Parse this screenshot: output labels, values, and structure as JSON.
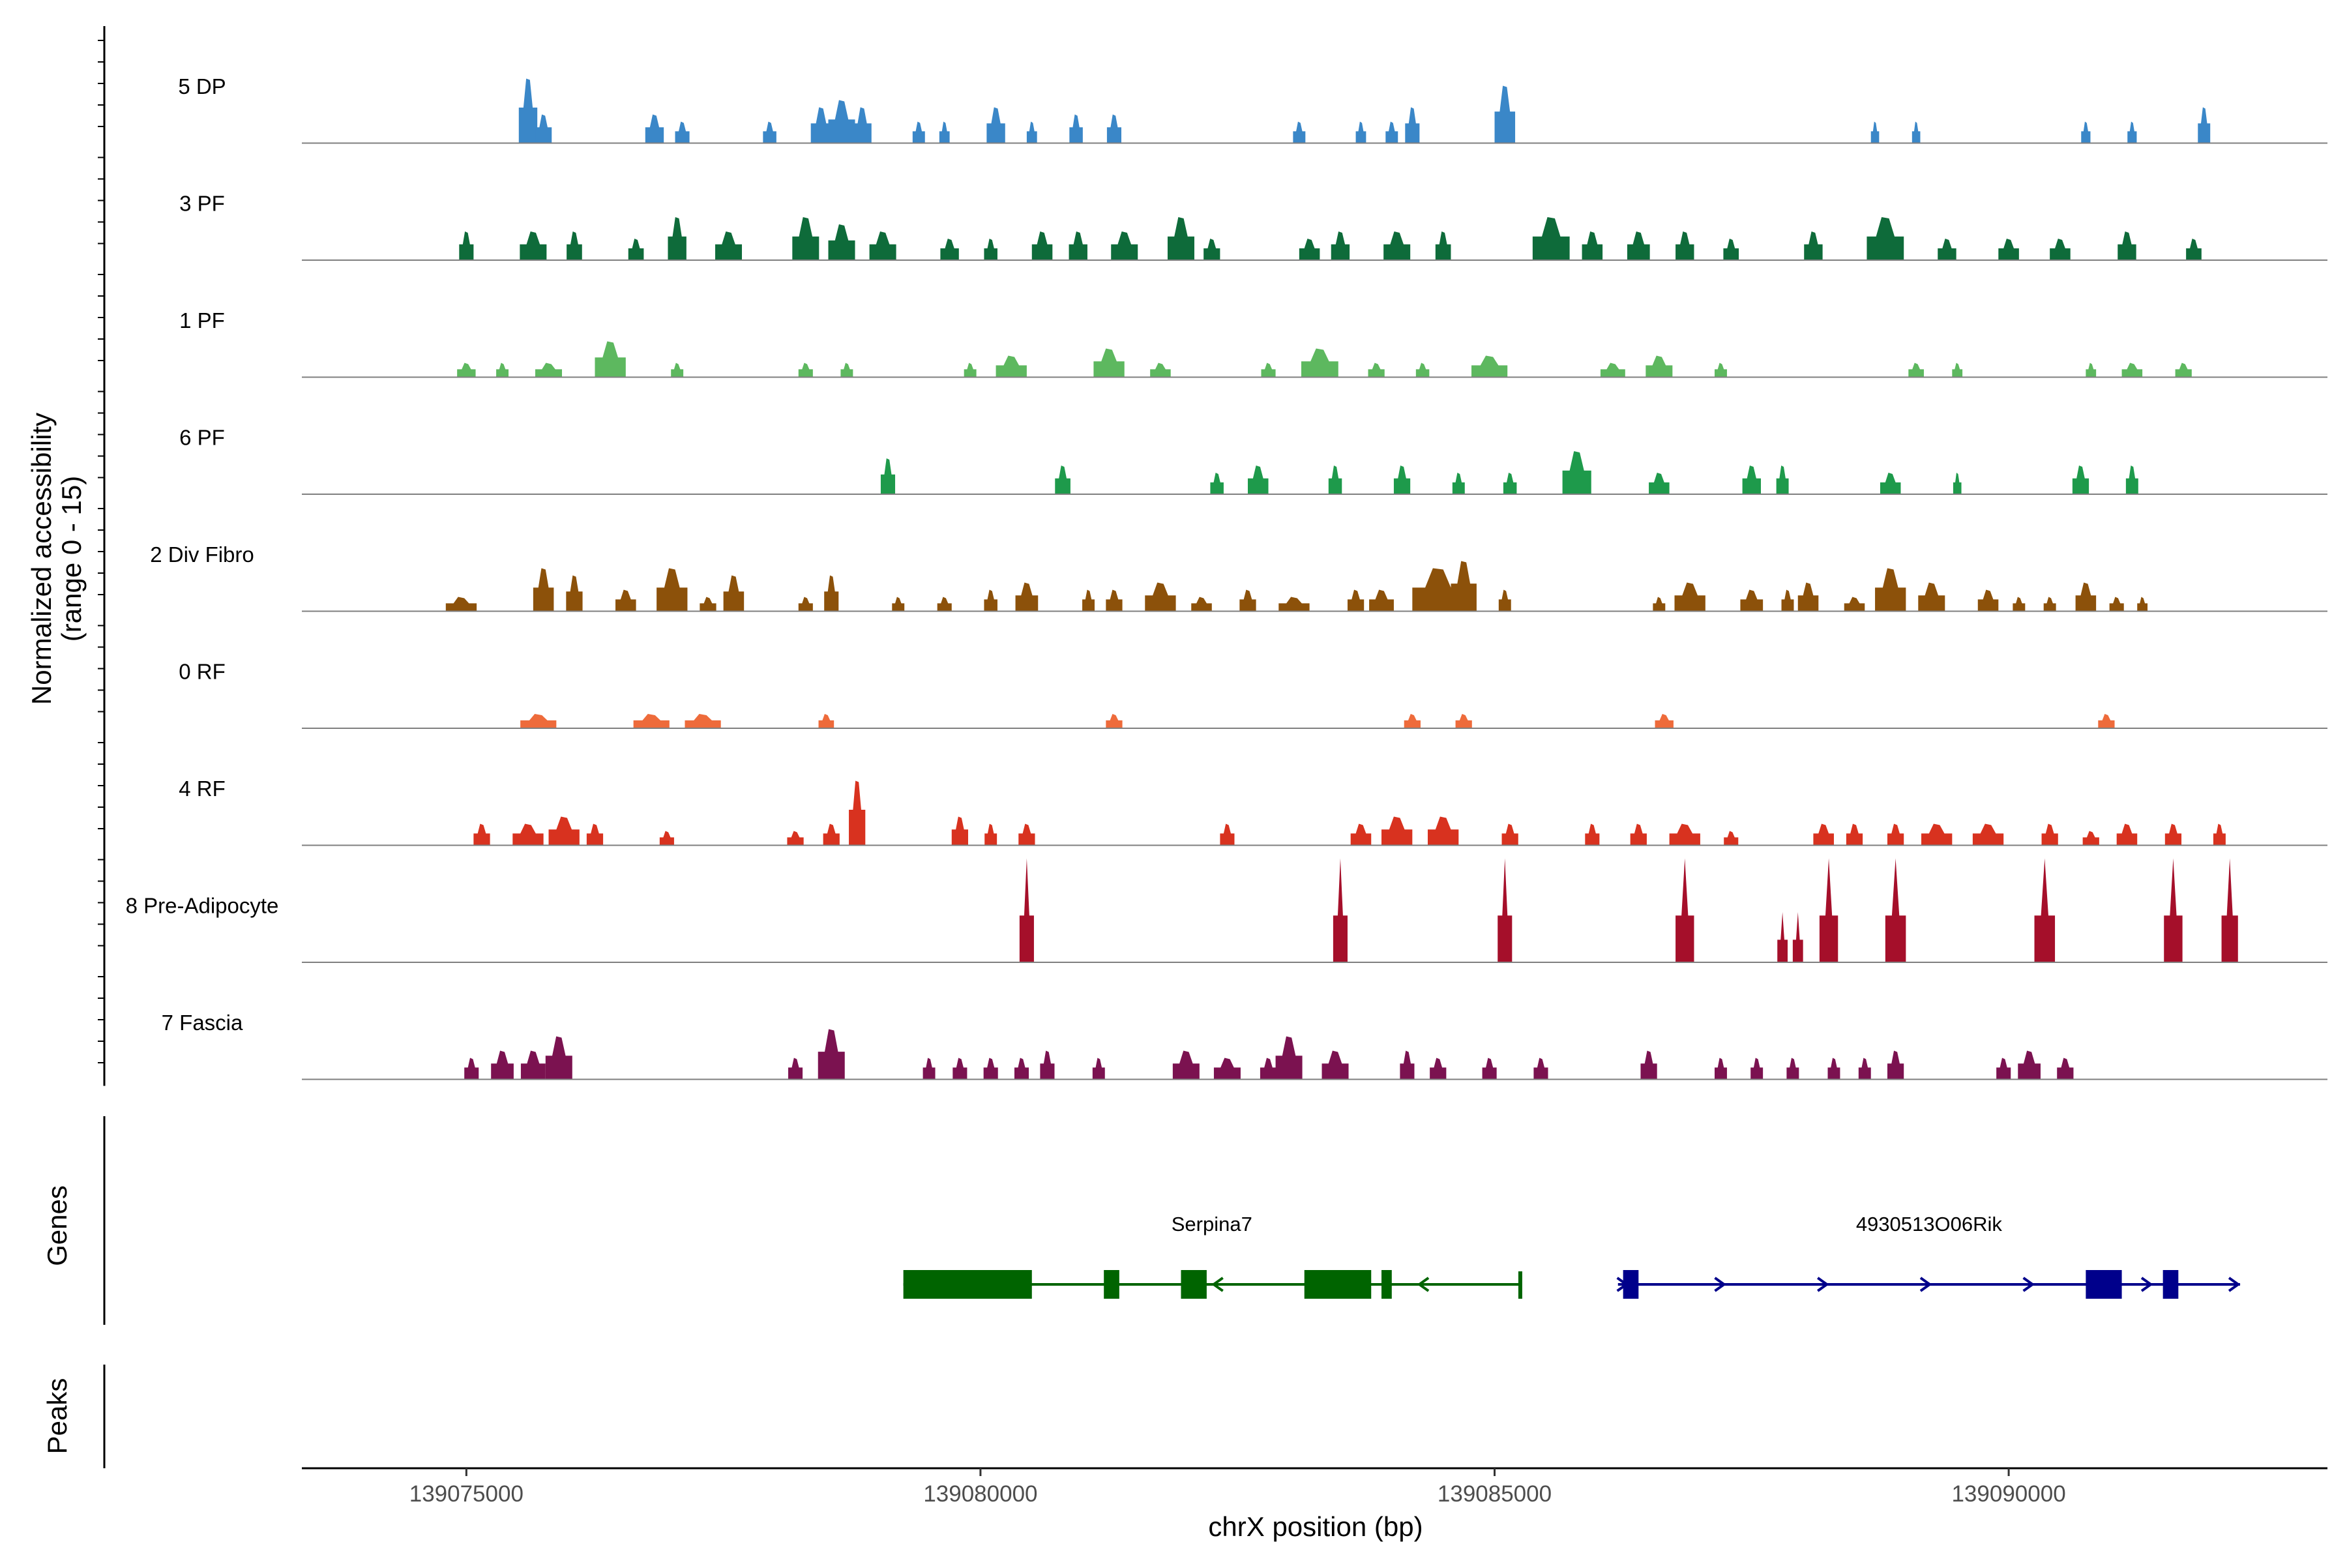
{
  "chart_data": {
    "type": "area",
    "title": "",
    "region": {
      "chromosome": "chrX",
      "start": 139073400,
      "end": 139093100
    },
    "xlabel": "chrX position (bp)",
    "xticks": [
      139075000,
      139080000,
      139085000,
      139090000
    ],
    "xtick_labels": [
      "139075000",
      "139080000",
      "139085000",
      "139090000"
    ],
    "ylabel_line1": "Normalized accessibility",
    "ylabel_line2": "(range 0 - 15)",
    "ylim": [
      0,
      15
    ],
    "genes_label": "Genes",
    "peaks_label": "Peaks",
    "peaks": [],
    "series": [
      {
        "name": "5 DP",
        "color": "#3A87C8",
        "peaks": [
          [
            139075600,
            180,
            9
          ],
          [
            139075750,
            160,
            4
          ],
          [
            139076830,
            180,
            4
          ],
          [
            139077100,
            140,
            3
          ],
          [
            139077950,
            130,
            3
          ],
          [
            139078450,
            200,
            5
          ],
          [
            139078650,
            260,
            6
          ],
          [
            139078850,
            180,
            5
          ],
          [
            139079400,
            120,
            3
          ],
          [
            139079650,
            100,
            3
          ],
          [
            139080150,
            180,
            5
          ],
          [
            139080500,
            100,
            3
          ],
          [
            139080930,
            130,
            4
          ],
          [
            139081300,
            140,
            4
          ],
          [
            139083100,
            120,
            3
          ],
          [
            139083700,
            100,
            3
          ],
          [
            139084000,
            120,
            3
          ],
          [
            139084200,
            140,
            5
          ],
          [
            139085100,
            200,
            8
          ],
          [
            139088700,
            80,
            3
          ],
          [
            139089100,
            80,
            3
          ],
          [
            139090750,
            90,
            3
          ],
          [
            139091200,
            90,
            3
          ],
          [
            139091900,
            120,
            5
          ]
        ]
      },
      {
        "name": "3 PF",
        "color": "#0E6B3A",
        "peaks": [
          [
            139075000,
            140,
            4
          ],
          [
            139075650,
            260,
            4
          ],
          [
            139076050,
            150,
            4
          ],
          [
            139076650,
            150,
            3
          ],
          [
            139077050,
            180,
            6
          ],
          [
            139077550,
            260,
            4
          ],
          [
            139078300,
            260,
            6
          ],
          [
            139078650,
            260,
            5
          ],
          [
            139079050,
            260,
            4
          ],
          [
            139079700,
            180,
            3
          ],
          [
            139080100,
            130,
            3
          ],
          [
            139080600,
            200,
            4
          ],
          [
            139080950,
            180,
            4
          ],
          [
            139081400,
            260,
            4
          ],
          [
            139081950,
            260,
            6
          ],
          [
            139082250,
            160,
            3
          ],
          [
            139083200,
            200,
            3
          ],
          [
            139083500,
            180,
            4
          ],
          [
            139084050,
            260,
            4
          ],
          [
            139084500,
            150,
            4
          ],
          [
            139085550,
            360,
            6
          ],
          [
            139085950,
            200,
            4
          ],
          [
            139086400,
            220,
            4
          ],
          [
            139086850,
            180,
            4
          ],
          [
            139087300,
            150,
            3
          ],
          [
            139088100,
            180,
            4
          ],
          [
            139088800,
            360,
            6
          ],
          [
            139089400,
            180,
            3
          ],
          [
            139090000,
            200,
            3
          ],
          [
            139090500,
            200,
            3
          ],
          [
            139091150,
            180,
            4
          ],
          [
            139091800,
            150,
            3
          ]
        ]
      },
      {
        "name": "1 PF",
        "color": "#5DB85F",
        "peaks": [
          [
            139075000,
            180,
            2
          ],
          [
            139075350,
            120,
            2
          ],
          [
            139075800,
            260,
            2
          ],
          [
            139076400,
            300,
            5
          ],
          [
            139077050,
            120,
            2
          ],
          [
            139078300,
            140,
            2
          ],
          [
            139078700,
            120,
            2
          ],
          [
            139079900,
            120,
            2
          ],
          [
            139080300,
            300,
            3
          ],
          [
            139081250,
            300,
            4
          ],
          [
            139081750,
            200,
            2
          ],
          [
            139082800,
            140,
            2
          ],
          [
            139083300,
            360,
            4
          ],
          [
            139083850,
            160,
            2
          ],
          [
            139084300,
            130,
            2
          ],
          [
            139084950,
            350,
            3
          ],
          [
            139086150,
            240,
            2
          ],
          [
            139086600,
            260,
            3
          ],
          [
            139087200,
            120,
            2
          ],
          [
            139089100,
            150,
            2
          ],
          [
            139089500,
            100,
            2
          ],
          [
            139090800,
            100,
            2
          ],
          [
            139091200,
            200,
            2
          ],
          [
            139091700,
            160,
            2
          ]
        ]
      },
      {
        "name": "6 PF",
        "color": "#1E9A4B",
        "peaks": [
          [
            139079100,
            140,
            5
          ],
          [
            139080800,
            150,
            4
          ],
          [
            139082300,
            130,
            3
          ],
          [
            139082700,
            200,
            4
          ],
          [
            139083450,
            130,
            4
          ],
          [
            139084100,
            160,
            4
          ],
          [
            139084650,
            120,
            3
          ],
          [
            139085150,
            130,
            3
          ],
          [
            139085800,
            280,
            6
          ],
          [
            139086600,
            200,
            3
          ],
          [
            139087500,
            180,
            4
          ],
          [
            139087800,
            120,
            4
          ],
          [
            139088850,
            200,
            3
          ],
          [
            139089500,
            80,
            3
          ],
          [
            139090700,
            160,
            4
          ],
          [
            139091200,
            120,
            4
          ]
        ]
      },
      {
        "name": "2 Div Fibro",
        "color": "#8C510A",
        "peaks": [
          [
            139074950,
            300,
            2
          ],
          [
            139075750,
            200,
            6
          ],
          [
            139076050,
            160,
            5
          ],
          [
            139076550,
            200,
            3
          ],
          [
            139077000,
            300,
            6
          ],
          [
            139077350,
            160,
            2
          ],
          [
            139077600,
            200,
            5
          ],
          [
            139078300,
            140,
            2
          ],
          [
            139078550,
            140,
            5
          ],
          [
            139079200,
            120,
            2
          ],
          [
            139079650,
            140,
            2
          ],
          [
            139080100,
            130,
            3
          ],
          [
            139080450,
            220,
            4
          ],
          [
            139081050,
            120,
            3
          ],
          [
            139081300,
            160,
            3
          ],
          [
            139081750,
            300,
            4
          ],
          [
            139082150,
            200,
            2
          ],
          [
            139082600,
            160,
            3
          ],
          [
            139083050,
            300,
            2
          ],
          [
            139083650,
            160,
            3
          ],
          [
            139083900,
            240,
            3
          ],
          [
            139084450,
            500,
            6
          ],
          [
            139084700,
            250,
            7
          ],
          [
            139085100,
            120,
            3
          ],
          [
            139086600,
            120,
            2
          ],
          [
            139086900,
            300,
            4
          ],
          [
            139087500,
            220,
            3
          ],
          [
            139087850,
            120,
            3
          ],
          [
            139088050,
            200,
            4
          ],
          [
            139088500,
            200,
            2
          ],
          [
            139088850,
            300,
            6
          ],
          [
            139089250,
            260,
            4
          ],
          [
            139089800,
            200,
            3
          ],
          [
            139090100,
            120,
            2
          ],
          [
            139090400,
            120,
            2
          ],
          [
            139090750,
            200,
            4
          ],
          [
            139091050,
            140,
            2
          ],
          [
            139091300,
            100,
            2
          ]
        ]
      },
      {
        "name": "0 RF",
        "color": "#EE6B3B",
        "peaks": [
          [
            139075700,
            350,
            2
          ],
          [
            139076800,
            350,
            2
          ],
          [
            139077300,
            350,
            2
          ],
          [
            139078500,
            150,
            2
          ],
          [
            139081300,
            160,
            2
          ],
          [
            139084200,
            160,
            2
          ],
          [
            139084700,
            160,
            2
          ],
          [
            139086650,
            180,
            2
          ],
          [
            139090950,
            160,
            2
          ]
        ]
      },
      {
        "name": "4 RF",
        "color": "#D8321F",
        "peaks": [
          [
            139075150,
            160,
            3
          ],
          [
            139075600,
            300,
            3
          ],
          [
            139075950,
            300,
            4
          ],
          [
            139076250,
            160,
            3
          ],
          [
            139076950,
            140,
            2
          ],
          [
            139078200,
            160,
            2
          ],
          [
            139078550,
            160,
            3
          ],
          [
            139078800,
            160,
            9
          ],
          [
            139079800,
            160,
            4
          ],
          [
            139080100,
            120,
            3
          ],
          [
            139080450,
            160,
            3
          ],
          [
            139082400,
            140,
            3
          ],
          [
            139083700,
            200,
            3
          ],
          [
            139084050,
            300,
            4
          ],
          [
            139084500,
            300,
            4
          ],
          [
            139085150,
            160,
            3
          ],
          [
            139085950,
            140,
            3
          ],
          [
            139086400,
            160,
            3
          ],
          [
            139086850,
            300,
            3
          ],
          [
            139087300,
            140,
            2
          ],
          [
            139088200,
            200,
            3
          ],
          [
            139088500,
            160,
            3
          ],
          [
            139088900,
            160,
            3
          ],
          [
            139089300,
            300,
            3
          ],
          [
            139089800,
            300,
            3
          ],
          [
            139090400,
            160,
            3
          ],
          [
            139090800,
            160,
            2
          ],
          [
            139091150,
            200,
            3
          ],
          [
            139091600,
            160,
            3
          ],
          [
            139092050,
            120,
            3
          ]
        ]
      },
      {
        "name": "8 Pre-Adipocyte",
        "color": "#A50F2A",
        "shape": "spike",
        "peaks": [
          [
            139080450,
            140,
            14.5
          ],
          [
            139083500,
            140,
            14.5
          ],
          [
            139085100,
            140,
            14.5
          ],
          [
            139086850,
            180,
            14.5
          ],
          [
            139087800,
            100,
            7
          ],
          [
            139087950,
            100,
            7
          ],
          [
            139088250,
            180,
            14.5
          ],
          [
            139088900,
            200,
            14.5
          ],
          [
            139090350,
            200,
            14.5
          ],
          [
            139091600,
            180,
            14.5
          ],
          [
            139092150,
            160,
            14.5
          ]
        ]
      },
      {
        "name": "7 Fascia",
        "color": "#7B1250",
        "peaks": [
          [
            139075050,
            140,
            3
          ],
          [
            139075350,
            220,
            4
          ],
          [
            139075650,
            240,
            4
          ],
          [
            139075900,
            260,
            6
          ],
          [
            139078200,
            140,
            3
          ],
          [
            139078550,
            260,
            7
          ],
          [
            139079500,
            120,
            3
          ],
          [
            139079800,
            140,
            3
          ],
          [
            139080100,
            140,
            3
          ],
          [
            139080400,
            140,
            3
          ],
          [
            139080650,
            140,
            4
          ],
          [
            139081150,
            120,
            3
          ],
          [
            139082000,
            260,
            4
          ],
          [
            139082400,
            260,
            3
          ],
          [
            139082800,
            160,
            3
          ],
          [
            139083000,
            260,
            6
          ],
          [
            139083450,
            260,
            4
          ],
          [
            139084150,
            140,
            4
          ],
          [
            139084450,
            160,
            3
          ],
          [
            139084950,
            140,
            3
          ],
          [
            139085450,
            140,
            3
          ],
          [
            139086500,
            160,
            4
          ],
          [
            139087200,
            120,
            3
          ],
          [
            139087550,
            120,
            3
          ],
          [
            139087900,
            120,
            3
          ],
          [
            139088300,
            120,
            3
          ],
          [
            139088600,
            120,
            3
          ],
          [
            139088900,
            160,
            4
          ],
          [
            139089950,
            140,
            3
          ],
          [
            139090200,
            220,
            4
          ],
          [
            139090550,
            160,
            3
          ]
        ]
      }
    ],
    "genes": [
      {
        "name": "Serpina7",
        "strand": "-",
        "color": "#006400",
        "start": 139079250,
        "end": 139085250,
        "exons": [
          [
            139079250,
            139080500
          ],
          [
            139081200,
            139081350
          ],
          [
            139081950,
            139082200
          ],
          [
            139083150,
            139083800
          ],
          [
            139083900,
            139084000
          ]
        ],
        "arrows": [
          139082300,
          139084300
        ]
      },
      {
        "name": "4930513O06Rik",
        "strand": "+",
        "color": "#00008B",
        "start": 139086200,
        "end": 139092250,
        "exons": [
          [
            139086250,
            139086400
          ],
          [
            139090750,
            139091100
          ],
          [
            139091500,
            139091650
          ]
        ],
        "arrows": [
          139086250,
          139087200,
          139088200,
          139089200,
          139090200,
          139091350,
          139092200
        ]
      }
    ]
  }
}
